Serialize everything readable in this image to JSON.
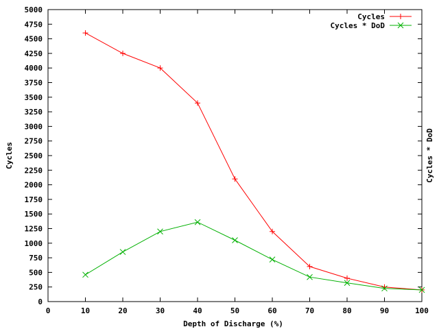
{
  "chart_data": {
    "type": "line",
    "title": "",
    "xlabel": "Depth of Discharge (%)",
    "ylabel": "Cycles",
    "y2label": "Cycles * DoD",
    "xlim": [
      0,
      100
    ],
    "ylim": [
      0,
      5000
    ],
    "xticks": [
      0,
      10,
      20,
      30,
      40,
      50,
      60,
      70,
      80,
      90,
      100
    ],
    "yticks": [
      0,
      250,
      500,
      750,
      1000,
      1250,
      1500,
      1750,
      2000,
      2250,
      2500,
      2750,
      3000,
      3250,
      3500,
      3750,
      4000,
      4250,
      4500,
      4750,
      5000
    ],
    "grid": false,
    "legend_position": "top-right",
    "x": [
      10,
      20,
      30,
      40,
      50,
      60,
      70,
      80,
      90,
      100
    ],
    "series": [
      {
        "name": "Cycles",
        "color": "#ff0000",
        "marker": "plus",
        "values": [
          4600,
          4250,
          4000,
          3400,
          2100,
          1200,
          600,
          400,
          250,
          200
        ]
      },
      {
        "name": "Cycles * DoD",
        "color": "#00b000",
        "marker": "cross",
        "values": [
          460,
          850,
          1200,
          1360,
          1050,
          720,
          420,
          320,
          225,
          200
        ]
      }
    ]
  }
}
